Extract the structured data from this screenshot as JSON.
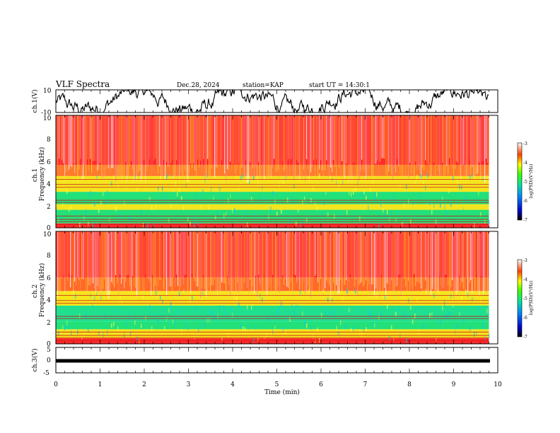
{
  "header": {
    "title": "VLF Spectra",
    "date": "Dec.28, 2024",
    "station": "station=KAP",
    "start": "start UT =  14:30:1"
  },
  "colors": {
    "spec_hi": "#ff2a2a",
    "spec_mid": "#f5e51e",
    "spec_lo": "#22e07a",
    "trace": "#000000"
  },
  "chart_data": [
    {
      "type": "line",
      "name": "ch1-waveform",
      "ylabel": "ch.1(V)",
      "ylim": [
        -10,
        10
      ],
      "yticks": [
        "10",
        "-10"
      ],
      "xlim": [
        0,
        10
      ]
    },
    {
      "type": "heatmap",
      "name": "ch1-spectrogram",
      "ylabel": "ch.1\nFrequency (kHz)",
      "ylim": [
        0,
        10
      ],
      "yticks": [
        "0",
        "2",
        "4",
        "6",
        "8",
        "10"
      ],
      "xlim": [
        0,
        10
      ],
      "data_extent_min": 9.8,
      "colorbar": {
        "label": "log(PSD)(V²/Hz)",
        "range": [
          -7,
          -3
        ],
        "ticks": [
          "-3",
          "-4",
          "-5",
          "-6",
          "-7"
        ]
      }
    },
    {
      "type": "heatmap",
      "name": "ch2-spectrogram",
      "ylabel": "ch.2\nFrequency (kHz)",
      "ylim": [
        0,
        10
      ],
      "yticks": [
        "0",
        "2",
        "4",
        "6",
        "8",
        "10"
      ],
      "xlim": [
        0,
        10
      ],
      "data_extent_min": 9.8,
      "colorbar": {
        "label": "log(PSD)(V²/Hz)",
        "range": [
          -7,
          -3
        ],
        "ticks": [
          "-3",
          "-4",
          "-5",
          "-6",
          "-7"
        ]
      }
    },
    {
      "type": "line",
      "name": "ch3-waveform",
      "ylabel": "ch.3(V)",
      "ylim": [
        -5,
        5
      ],
      "yticks": [
        "5",
        "0",
        "-5"
      ],
      "xlim": [
        0,
        10
      ]
    }
  ],
  "xaxis": {
    "label": "Time (min)",
    "ticks": [
      "0",
      "1",
      "2",
      "3",
      "4",
      "5",
      "6",
      "7",
      "8",
      "9",
      "10"
    ]
  }
}
